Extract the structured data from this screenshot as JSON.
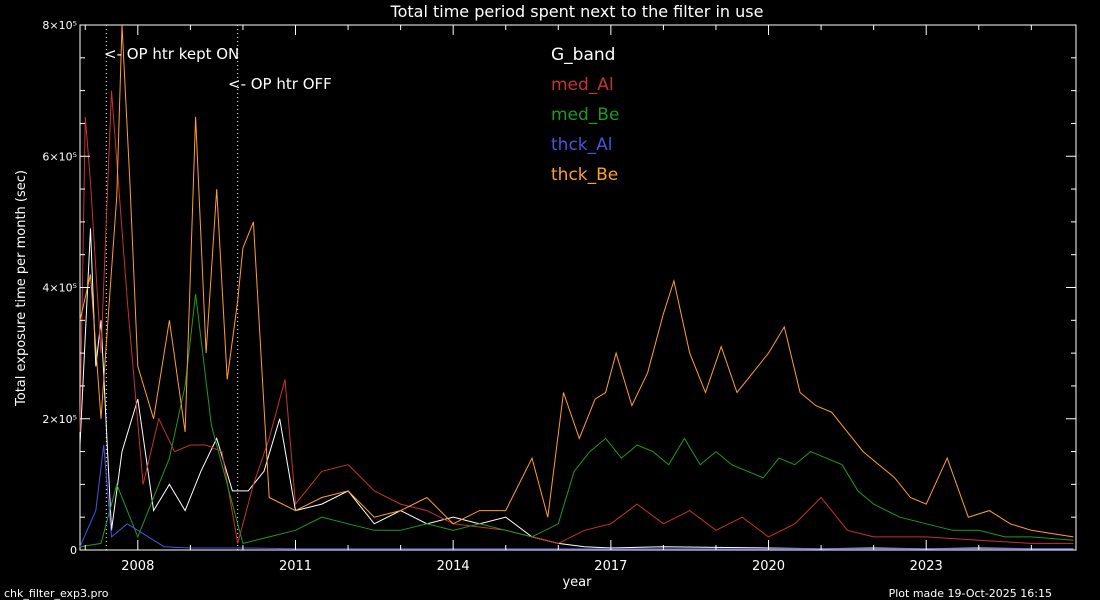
{
  "footer": {
    "program": "chk_filter_exp3.pro",
    "plot_made": "Plot made 19-Oct-2025 16:15"
  },
  "annotations": {
    "op_htr_on": "<- OP htr kept ON",
    "op_htr_off": "<- OP htr OFF"
  },
  "chart_data": {
    "type": "line",
    "title": "Total time period spent next to the filter in use",
    "xlabel": "year",
    "ylabel": "Total exposure time per month (sec)",
    "xlim": [
      2006.9,
      2025.85
    ],
    "ylim": [
      0,
      800000
    ],
    "x_ticks": [
      2008,
      2011,
      2014,
      2017,
      2020,
      2023
    ],
    "y_ticks": [
      {
        "value": 0,
        "label": "0"
      },
      {
        "value": 200000,
        "label": "2×10⁵"
      },
      {
        "value": 400000,
        "label": "4×10⁵"
      },
      {
        "value": 600000,
        "label": "6×10⁵"
      },
      {
        "value": 800000,
        "label": "8×10⁵"
      }
    ],
    "vlines": [
      2007.4,
      2009.9
    ],
    "legend_position": "top-center",
    "series": [
      {
        "name": "G_band",
        "color": "#ffffff",
        "x": [
          2006.9,
          2007.1,
          2007.2,
          2007.3,
          2007.5,
          2007.7,
          2008.0,
          2008.3,
          2008.6,
          2008.9,
          2009.2,
          2009.5,
          2009.8,
          2010.1,
          2010.4,
          2010.7,
          2011.0,
          2011.5,
          2012.0,
          2012.5,
          2013.0,
          2013.5,
          2014.0,
          2014.5,
          2015.0,
          2015.5,
          2016.0,
          2016.5,
          2017.0,
          2018.0,
          2019.0,
          2020.0,
          2021.0,
          2022.0,
          2023.0,
          2024.0,
          2025.0,
          2025.8
        ],
        "y": [
          160000,
          490000,
          280000,
          350000,
          30000,
          150000,
          230000,
          60000,
          100000,
          60000,
          120000,
          170000,
          90000,
          90000,
          120000,
          200000,
          60000,
          70000,
          90000,
          40000,
          60000,
          40000,
          50000,
          40000,
          50000,
          20000,
          10000,
          5000,
          3000,
          5000,
          4000,
          3000,
          2000,
          3000,
          2000,
          3000,
          2000,
          2000
        ]
      },
      {
        "name": "med_Al",
        "color": "#c83232",
        "x": [
          2006.9,
          2007.0,
          2007.1,
          2007.3,
          2007.5,
          2007.8,
          2008.1,
          2008.4,
          2008.7,
          2009.0,
          2009.3,
          2009.6,
          2009.9,
          2010.2,
          2010.5,
          2010.8,
          2011.0,
          2011.5,
          2012.0,
          2012.5,
          2013.0,
          2013.5,
          2014.0,
          2015.0,
          2016.0,
          2016.5,
          2017.0,
          2017.5,
          2018.0,
          2018.5,
          2019.0,
          2019.5,
          2020.0,
          2020.5,
          2021.0,
          2021.5,
          2022.0,
          2023.0,
          2024.0,
          2025.0,
          2025.8
        ],
        "y": [
          180000,
          660000,
          560000,
          300000,
          700000,
          380000,
          100000,
          200000,
          150000,
          160000,
          160000,
          150000,
          10000,
          100000,
          170000,
          260000,
          70000,
          120000,
          130000,
          90000,
          70000,
          60000,
          40000,
          30000,
          10000,
          30000,
          40000,
          70000,
          40000,
          60000,
          30000,
          50000,
          20000,
          40000,
          80000,
          30000,
          20000,
          20000,
          15000,
          10000,
          10000
        ]
      },
      {
        "name": "med_Be",
        "color": "#1e9b1e",
        "x": [
          2006.9,
          2007.3,
          2007.6,
          2008.0,
          2008.3,
          2008.6,
          2008.9,
          2009.1,
          2009.4,
          2009.7,
          2010.0,
          2010.5,
          2011.0,
          2011.5,
          2012.0,
          2012.5,
          2013.0,
          2013.5,
          2014.0,
          2014.5,
          2015.0,
          2015.5,
          2016.0,
          2016.3,
          2016.6,
          2016.9,
          2017.2,
          2017.5,
          2017.8,
          2018.1,
          2018.4,
          2018.7,
          2019.0,
          2019.3,
          2019.6,
          2019.9,
          2020.2,
          2020.5,
          2020.8,
          2021.1,
          2021.4,
          2021.7,
          2022.0,
          2022.5,
          2023.0,
          2023.5,
          2024.0,
          2024.5,
          2025.0,
          2025.8
        ],
        "y": [
          5000,
          10000,
          100000,
          20000,
          80000,
          140000,
          250000,
          390000,
          190000,
          100000,
          10000,
          20000,
          30000,
          50000,
          40000,
          30000,
          30000,
          40000,
          30000,
          40000,
          30000,
          20000,
          40000,
          120000,
          150000,
          170000,
          140000,
          160000,
          150000,
          130000,
          170000,
          130000,
          150000,
          130000,
          120000,
          110000,
          140000,
          130000,
          150000,
          140000,
          130000,
          90000,
          70000,
          50000,
          40000,
          30000,
          30000,
          20000,
          20000,
          15000
        ]
      },
      {
        "name": "thck_Al",
        "color": "#5050dc",
        "x": [
          2006.9,
          2007.2,
          2007.35,
          2007.5,
          2007.8,
          2008.2,
          2008.5,
          2009.0,
          2010.0,
          2011.0,
          2012.0,
          2013.0,
          2014.0,
          2015.0,
          2016.0,
          2017.0,
          2018.0,
          2019.0,
          2020.0,
          2021.0,
          2022.0,
          2023.0,
          2024.0,
          2025.0,
          2025.8
        ],
        "y": [
          5000,
          60000,
          160000,
          20000,
          40000,
          20000,
          5000,
          3000,
          3000,
          2000,
          2000,
          2000,
          2000,
          2000,
          2000,
          2000,
          2000,
          2000,
          2000,
          2000,
          2000,
          2000,
          2000,
          2000,
          2000
        ]
      },
      {
        "name": "thck_Be",
        "color": "#ffa028",
        "x": [
          2006.9,
          2007.1,
          2007.3,
          2007.6,
          2007.7,
          2007.85,
          2008.0,
          2008.3,
          2008.6,
          2008.9,
          2009.1,
          2009.3,
          2009.5,
          2009.7,
          2009.9,
          2010.0,
          2010.2,
          2010.5,
          2011.0,
          2011.5,
          2012.0,
          2012.5,
          2013.0,
          2013.5,
          2014.0,
          2014.5,
          2015.0,
          2015.5,
          2015.8,
          2016.1,
          2016.4,
          2016.7,
          2016.9,
          2017.1,
          2017.4,
          2017.7,
          2018.0,
          2018.2,
          2018.5,
          2018.8,
          2019.1,
          2019.4,
          2019.7,
          2020.0,
          2020.3,
          2020.6,
          2020.9,
          2021.2,
          2021.5,
          2021.8,
          2022.1,
          2022.4,
          2022.7,
          2023.0,
          2023.4,
          2023.8,
          2024.2,
          2024.6,
          2025.0,
          2025.4,
          2025.8
        ],
        "y": [
          350000,
          420000,
          200000,
          540000,
          810000,
          560000,
          280000,
          200000,
          350000,
          180000,
          660000,
          300000,
          550000,
          260000,
          380000,
          460000,
          500000,
          80000,
          60000,
          80000,
          90000,
          50000,
          60000,
          80000,
          40000,
          60000,
          60000,
          140000,
          50000,
          240000,
          170000,
          230000,
          240000,
          300000,
          220000,
          270000,
          360000,
          410000,
          300000,
          240000,
          310000,
          240000,
          270000,
          300000,
          340000,
          240000,
          220000,
          210000,
          180000,
          150000,
          130000,
          110000,
          80000,
          70000,
          140000,
          50000,
          60000,
          40000,
          30000,
          25000,
          20000
        ]
      }
    ]
  }
}
